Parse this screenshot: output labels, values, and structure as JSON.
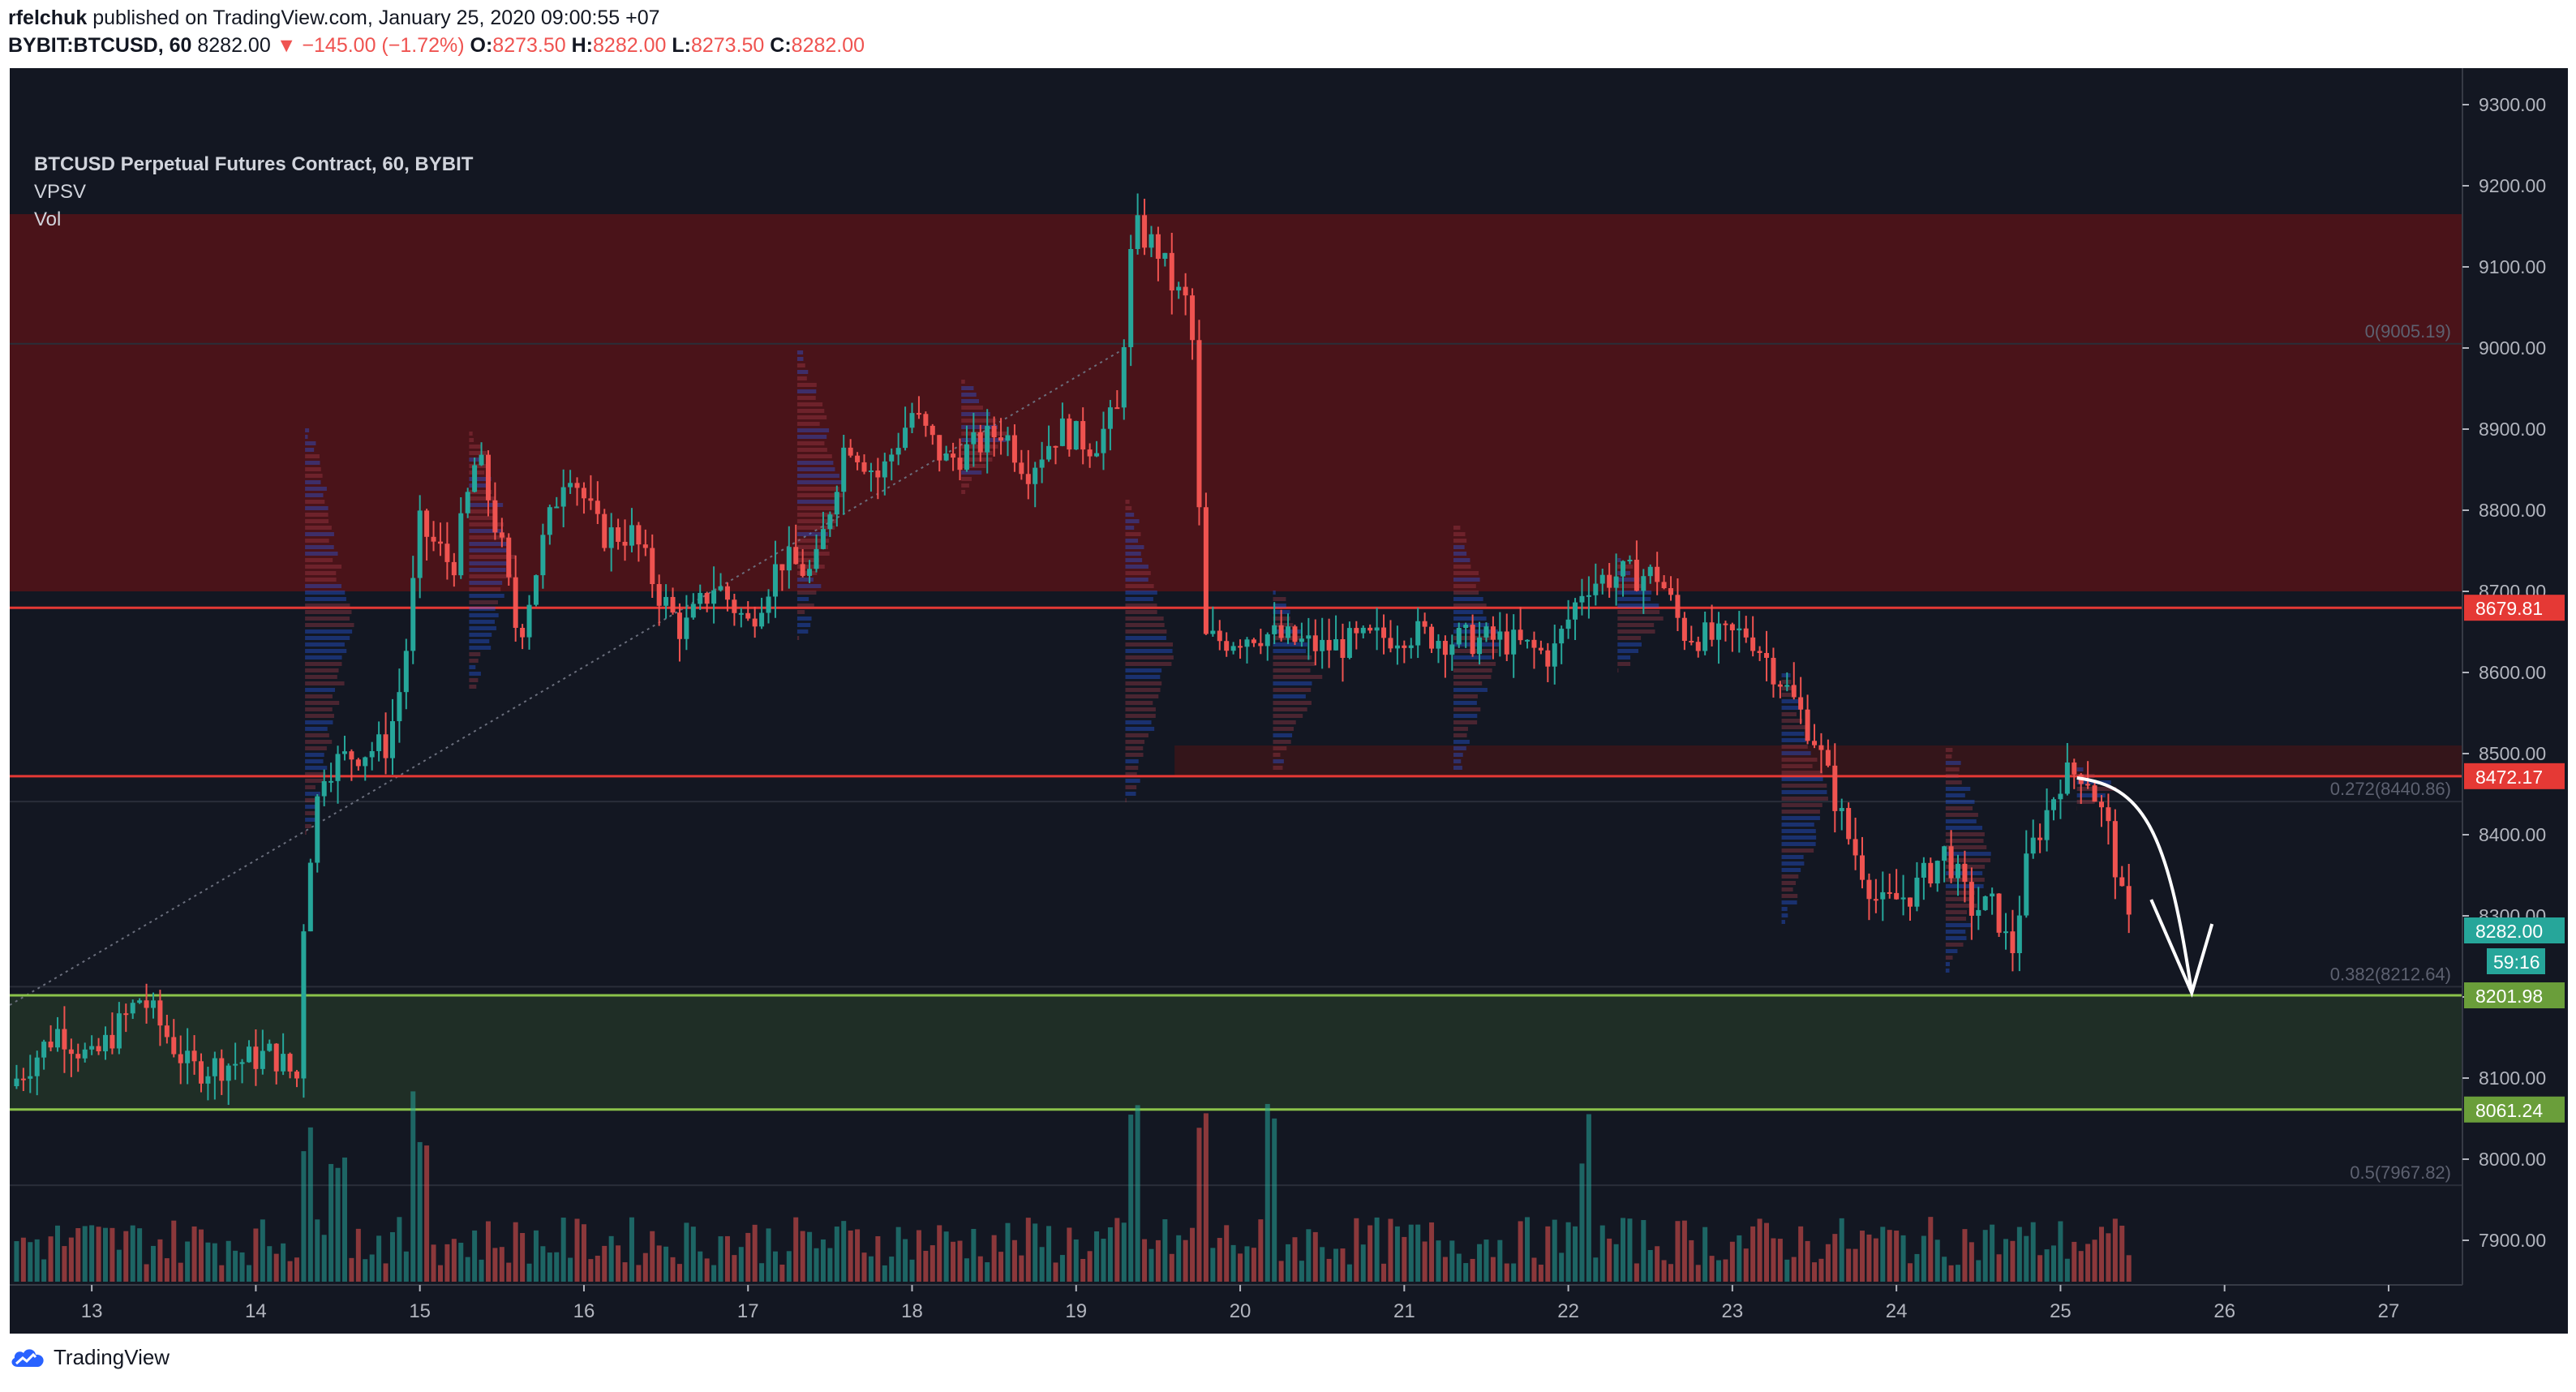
{
  "header": {
    "author": "rfelchuk",
    "published_text": " published on TradingView.com, January 25, 2020 09:00:55 +07",
    "symbol": "BYBIT:BTCUSD, 60",
    "last": "8282.00",
    "change": "−145.00 (−1.72%)",
    "o_label": "O:",
    "o_value": "8273.50",
    "h_label": "H:",
    "h_value": "8282.00",
    "l_label": "L:",
    "l_value": "8273.50",
    "c_label": "C:",
    "c_value": "8282.00"
  },
  "legend": {
    "title": "BTCUSD Perpetual Futures Contract, 60, BYBIT",
    "indicator1": "VPSV",
    "indicator2": "Vol"
  },
  "footer": {
    "brand": "TradingView"
  },
  "colors": {
    "background": "#131722",
    "up": "#26a69a",
    "down": "#ef5350",
    "resistance_zone": "#4a1319",
    "support_zone": "#1f2e26",
    "support_line": "#8bc34a",
    "level_line": "#e53935",
    "axis_text": "#b2b5be",
    "fib_text": "#5d6170"
  },
  "chart_data": {
    "type": "candlestick",
    "title": "BTCUSD Perpetual Futures Contract, 60, BYBIT",
    "x_ticks": [
      "13",
      "14",
      "15",
      "16",
      "17",
      "18",
      "19",
      "20",
      "21",
      "22",
      "23",
      "24",
      "25",
      "26",
      "27"
    ],
    "x_range_days": [
      12.5,
      27.45
    ],
    "y_ticks": [
      "7900.00",
      "8000.00",
      "8100.00",
      "8200.00",
      "8300.00",
      "8400.00",
      "8500.00",
      "8600.00",
      "8700.00",
      "8800.00",
      "8900.00",
      "9000.00",
      "9100.00",
      "9200.00",
      "9300.00"
    ],
    "y_range": [
      7845,
      9345
    ],
    "price_labels": [
      {
        "price": 8679.81,
        "text": "8679.81",
        "color": "#e53935"
      },
      {
        "price": 8472.17,
        "text": "8472.17",
        "color": "#e53935"
      },
      {
        "price": 8282.0,
        "text": "8282.00",
        "color": "#26a69a"
      },
      {
        "price": 8201.98,
        "text": "8201.98",
        "color": "#6a9e3a"
      },
      {
        "price": 8061.24,
        "text": "8061.24",
        "color": "#6a9e3a"
      }
    ],
    "countdown": "59:16",
    "horizontal_lines": [
      8679.81,
      8472.17,
      8201.98,
      8061.24
    ],
    "zones": [
      {
        "name": "resistance",
        "from": 8700,
        "to": 9165,
        "day_start": 12.5,
        "day_end": 27.45
      },
      {
        "name": "support",
        "from": 8061.24,
        "to": 8201.98,
        "day_start": 12.5,
        "day_end": 27.45
      },
      {
        "name": "minor-resistance",
        "from": 8472.17,
        "to": 8510,
        "day_start": 19.6,
        "day_end": 27.45
      }
    ],
    "fib_levels": [
      {
        "price": 9005.19,
        "label": "0(9005.19)"
      },
      {
        "price": 8440.86,
        "label": "0.272(8440.86)"
      },
      {
        "price": 8212.64,
        "label": "0.382(8212.64)"
      },
      {
        "price": 7967.82,
        "label": "0.5(7967.82)"
      }
    ],
    "trend_line": {
      "from": [
        12.5,
        8190
      ],
      "to": [
        19.3,
        9000
      ]
    },
    "price_path": [
      [
        12.5,
        8090
      ],
      [
        12.8,
        8160
      ],
      [
        13.0,
        8120
      ],
      [
        13.3,
        8200
      ],
      [
        13.6,
        8110
      ],
      [
        13.9,
        8120
      ],
      [
        14.1,
        8130
      ],
      [
        14.25,
        8100
      ],
      [
        14.3,
        8330
      ],
      [
        14.4,
        8480
      ],
      [
        14.6,
        8500
      ],
      [
        14.8,
        8510
      ],
      [
        14.9,
        8600
      ],
      [
        15.0,
        8780
      ],
      [
        15.2,
        8730
      ],
      [
        15.35,
        8870
      ],
      [
        15.5,
        8750
      ],
      [
        15.6,
        8640
      ],
      [
        15.75,
        8760
      ],
      [
        15.9,
        8860
      ],
      [
        16.1,
        8770
      ],
      [
        16.3,
        8770
      ],
      [
        16.45,
        8700
      ],
      [
        16.6,
        8650
      ],
      [
        16.8,
        8710
      ],
      [
        17.0,
        8660
      ],
      [
        17.2,
        8740
      ],
      [
        17.4,
        8720
      ],
      [
        17.6,
        8890
      ],
      [
        17.8,
        8840
      ],
      [
        18.0,
        8920
      ],
      [
        18.2,
        8860
      ],
      [
        18.4,
        8880
      ],
      [
        18.55,
        8900
      ],
      [
        18.7,
        8850
      ],
      [
        18.9,
        8900
      ],
      [
        19.1,
        8880
      ],
      [
        19.25,
        8920
      ],
      [
        19.35,
        9150
      ],
      [
        19.5,
        9120
      ],
      [
        19.6,
        9070
      ],
      [
        19.7,
        9050
      ],
      [
        19.78,
        8640
      ],
      [
        19.9,
        8640
      ],
      [
        20.1,
        8650
      ],
      [
        20.3,
        8640
      ],
      [
        20.5,
        8630
      ],
      [
        20.8,
        8640
      ],
      [
        21.0,
        8650
      ],
      [
        21.3,
        8640
      ],
      [
        21.6,
        8640
      ],
      [
        21.9,
        8620
      ],
      [
        22.1,
        8710
      ],
      [
        22.3,
        8720
      ],
      [
        22.55,
        8720
      ],
      [
        22.7,
        8650
      ],
      [
        22.9,
        8640
      ],
      [
        23.1,
        8650
      ],
      [
        23.3,
        8590
      ],
      [
        23.5,
        8520
      ],
      [
        23.7,
        8400
      ],
      [
        23.9,
        8310
      ],
      [
        24.1,
        8330
      ],
      [
        24.3,
        8380
      ],
      [
        24.45,
        8310
      ],
      [
        24.6,
        8310
      ],
      [
        24.7,
        8250
      ],
      [
        24.8,
        8370
      ],
      [
        25.0,
        8470
      ],
      [
        25.15,
        8480
      ],
      [
        25.3,
        8400
      ],
      [
        25.4,
        8290
      ],
      [
        25.45,
        8282
      ]
    ],
    "projection": {
      "from": [
        25.1,
        8470
      ],
      "to": [
        25.8,
        8205
      ]
    },
    "volume_max_height_ratio": 1.0
  }
}
